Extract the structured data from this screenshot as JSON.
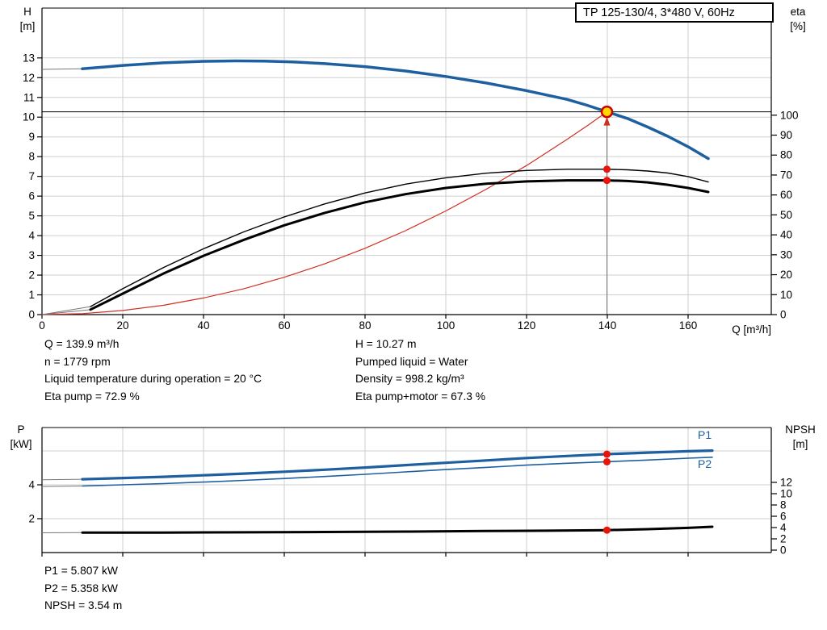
{
  "title_box": "TP 125-130/4, 3*480 V, 60Hz",
  "colors": {
    "blue": "#1e5fa0",
    "black": "#000000",
    "red_curve": "#d03020",
    "dot_red": "#e81309",
    "duty_fill": "#ffd800",
    "duty_stroke": "#cc0000",
    "grid": "#cfcfcf",
    "axis": "#000000",
    "join": "#777777"
  },
  "axes_labels": {
    "top_left_1": "H",
    "top_left_2": "[m]",
    "top_right_1": "eta",
    "top_right_2": "[%]",
    "x_label": "Q [m³/h]",
    "bottom_left_1": "P",
    "bottom_left_2": "[kW]",
    "bottom_right_1": "NPSH",
    "bottom_right_2": "[m]",
    "p1": "P1",
    "p2": "P2"
  },
  "info": {
    "left": [
      "Q = 139.9 m³/h",
      "n = 1779 rpm",
      "Liquid temperature during operation = 20 °C",
      "Eta pump = 72.9 %"
    ],
    "right": [
      "H = 10.27 m",
      "Pumped liquid = Water",
      "Density = 998.2 kg/m³",
      "Eta pump+motor = 67.3 %"
    ],
    "bottom": [
      "P1 = 5.807 kW",
      "P2 = 5.358 kW",
      "NPSH = 3.54 m"
    ]
  },
  "chart_data": [
    {
      "type": "line",
      "title": "TP 125-130/4, 3*480 V, 60Hz",
      "x_axis": {
        "label": "Q [m³/h]",
        "min": 0,
        "max": 180.6,
        "ticks": [
          0,
          20,
          40,
          60,
          80,
          100,
          120,
          140,
          160
        ]
      },
      "y_left": {
        "label": "H [m]",
        "min": 0,
        "max": 13,
        "ticks": [
          0,
          1,
          2,
          3,
          4,
          5,
          6,
          7,
          8,
          9,
          10,
          11,
          12,
          13
        ],
        "grid": [
          1,
          2,
          3,
          4,
          5,
          6,
          7,
          8,
          9,
          10,
          11,
          12,
          13
        ]
      },
      "y_right": {
        "label": "eta [%]",
        "min": 0,
        "max": 100,
        "ticks": [
          0,
          10,
          20,
          30,
          40,
          50,
          60,
          70,
          80,
          90,
          100
        ]
      },
      "duty": {
        "q": 139.9,
        "main": {
          "axis": "left",
          "v": 10.27
        },
        "dots": [
          {
            "axis": "right",
            "v": 72.9
          },
          {
            "axis": "right",
            "v": 67.3
          }
        ]
      },
      "series": [
        {
          "name": "system-curve",
          "axis": "left",
          "color": "red_curve",
          "width": 1.2,
          "points": [
            [
              0,
              0
            ],
            [
              10,
              0.05
            ],
            [
              20,
              0.21
            ],
            [
              30,
              0.47
            ],
            [
              40,
              0.84
            ],
            [
              50,
              1.31
            ],
            [
              60,
              1.89
            ],
            [
              70,
              2.57
            ],
            [
              80,
              3.36
            ],
            [
              90,
              4.25
            ],
            [
              100,
              5.25
            ],
            [
              110,
              6.35
            ],
            [
              120,
              7.55
            ],
            [
              130,
              8.87
            ],
            [
              135,
              9.56
            ],
            [
              139.9,
              10.27
            ]
          ]
        },
        {
          "name": "head-curve",
          "axis": "left",
          "color": "blue",
          "width": 3.5,
          "axis_join": [
            0,
            12.42
          ],
          "points": [
            [
              10,
              12.45
            ],
            [
              20,
              12.62
            ],
            [
              30,
              12.75
            ],
            [
              40,
              12.83
            ],
            [
              48,
              12.85
            ],
            [
              55,
              12.84
            ],
            [
              62,
              12.8
            ],
            [
              70,
              12.71
            ],
            [
              80,
              12.56
            ],
            [
              90,
              12.34
            ],
            [
              100,
              12.06
            ],
            [
              110,
              11.73
            ],
            [
              120,
              11.34
            ],
            [
              130,
              10.9
            ],
            [
              135,
              10.6
            ],
            [
              139.9,
              10.27
            ],
            [
              145,
              9.93
            ],
            [
              150,
              9.5
            ],
            [
              155,
              9.03
            ],
            [
              160,
              8.5
            ],
            [
              165,
              7.9
            ]
          ]
        },
        {
          "name": "eta-pump-curve",
          "axis": "right",
          "color": "black",
          "width": 1.4,
          "axis_join": [
            0,
            0
          ],
          "points": [
            [
              12,
              4
            ],
            [
              20,
              13
            ],
            [
              30,
              23.5
            ],
            [
              40,
              33
            ],
            [
              50,
              41.5
            ],
            [
              60,
              49
            ],
            [
              70,
              55.5
            ],
            [
              80,
              61
            ],
            [
              90,
              65.4
            ],
            [
              100,
              68.6
            ],
            [
              110,
              70.9
            ],
            [
              120,
              72.3
            ],
            [
              130,
              72.9
            ],
            [
              139.9,
              72.9
            ],
            [
              145,
              72.6
            ],
            [
              150,
              72
            ],
            [
              155,
              71
            ],
            [
              160,
              69.2
            ],
            [
              165,
              66.5
            ]
          ]
        },
        {
          "name": "eta-pump-motor-curve",
          "axis": "right",
          "color": "black",
          "width": 3,
          "axis_join": [
            0,
            0
          ],
          "points": [
            [
              12,
              2.5
            ],
            [
              20,
              10.5
            ],
            [
              30,
              20.5
            ],
            [
              40,
              29.5
            ],
            [
              50,
              37.5
            ],
            [
              60,
              44.8
            ],
            [
              70,
              51
            ],
            [
              80,
              56.3
            ],
            [
              90,
              60.4
            ],
            [
              100,
              63.5
            ],
            [
              110,
              65.6
            ],
            [
              120,
              66.8
            ],
            [
              130,
              67.3
            ],
            [
              139.9,
              67.3
            ],
            [
              145,
              67
            ],
            [
              150,
              66.3
            ],
            [
              155,
              65.1
            ],
            [
              160,
              63.5
            ],
            [
              165,
              61.5
            ]
          ]
        }
      ]
    },
    {
      "type": "line",
      "title": "Power and NPSH curves",
      "x_axis": {
        "label": "Q [m³/h]",
        "min": 0,
        "max": 180.6,
        "ticks": [
          0,
          20,
          40,
          60,
          80,
          100,
          120,
          140,
          160
        ]
      },
      "y_left": {
        "label": "P [kW]",
        "min": 0,
        "max": 7.4,
        "ticks": [
          2,
          4
        ],
        "grid": [
          2,
          4,
          6
        ]
      },
      "y_right": {
        "label": "NPSH [m]",
        "min": 0,
        "max": 12,
        "ticks": [
          0,
          2,
          4,
          6,
          8,
          10,
          12
        ]
      },
      "duty": {
        "q": 139.9,
        "dots": [
          {
            "axis": "left",
            "v": 5.807
          },
          {
            "axis": "left",
            "v": 5.358
          },
          {
            "axis": "right",
            "v": 3.54
          }
        ]
      },
      "series": [
        {
          "name": "p1-curve",
          "axis": "left",
          "color": "blue",
          "width": 3.2,
          "axis_join": [
            0,
            4.3
          ],
          "points": [
            [
              10,
              4.33
            ],
            [
              20,
              4.4
            ],
            [
              30,
              4.47
            ],
            [
              40,
              4.56
            ],
            [
              50,
              4.66
            ],
            [
              60,
              4.77
            ],
            [
              70,
              4.89
            ],
            [
              80,
              5.02
            ],
            [
              90,
              5.16
            ],
            [
              100,
              5.3
            ],
            [
              110,
              5.44
            ],
            [
              120,
              5.58
            ],
            [
              130,
              5.7
            ],
            [
              139.9,
              5.81
            ],
            [
              150,
              5.9
            ],
            [
              160,
              5.98
            ],
            [
              166,
              6.02
            ]
          ]
        },
        {
          "name": "p2-curve",
          "axis": "left",
          "color": "blue",
          "width": 1.6,
          "axis_join": [
            0,
            3.9
          ],
          "points": [
            [
              10,
              3.93
            ],
            [
              20,
              4.0
            ],
            [
              30,
              4.07
            ],
            [
              40,
              4.16
            ],
            [
              50,
              4.26
            ],
            [
              60,
              4.37
            ],
            [
              70,
              4.49
            ],
            [
              80,
              4.62
            ],
            [
              90,
              4.76
            ],
            [
              100,
              4.9
            ],
            [
              110,
              5.03
            ],
            [
              120,
              5.16
            ],
            [
              130,
              5.27
            ],
            [
              139.9,
              5.36
            ],
            [
              150,
              5.46
            ],
            [
              160,
              5.57
            ],
            [
              166,
              5.63
            ]
          ]
        },
        {
          "name": "npsh-curve",
          "axis": "right",
          "color": "black",
          "width": 3,
          "axis_join": [
            0,
            3.08
          ],
          "points": [
            [
              10,
              3.1
            ],
            [
              30,
              3.12
            ],
            [
              50,
              3.16
            ],
            [
              70,
              3.21
            ],
            [
              90,
              3.28
            ],
            [
              110,
              3.38
            ],
            [
              125,
              3.45
            ],
            [
              139.9,
              3.54
            ],
            [
              150,
              3.72
            ],
            [
              160,
              3.95
            ],
            [
              166,
              4.15
            ]
          ]
        }
      ]
    }
  ]
}
